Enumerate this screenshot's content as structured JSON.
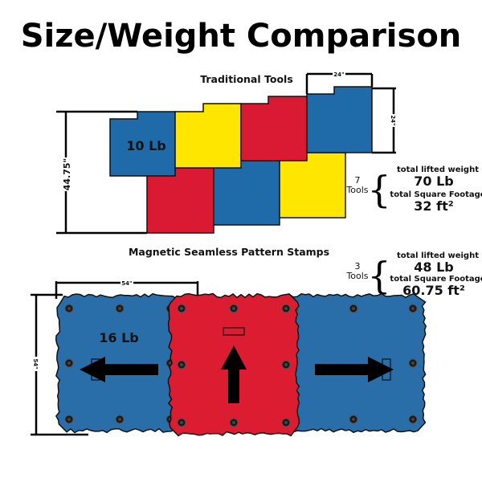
{
  "title": "Size/Weight Comparison",
  "colors": {
    "blue": "#1f6aa8",
    "yellow": "#ffe600",
    "red": "#d91a32",
    "stamp_blue": "#2a6ea9",
    "stamp_red": "#dc1c30"
  },
  "traditional": {
    "heading": "Traditional Tools",
    "tile_weight": "10 Lb",
    "height_dim": "44.75\"",
    "tile_width_dim": "24\"",
    "tile_height_dim": "24\"",
    "tool_count": "7",
    "tools_label": "Tools",
    "weight_label": "total lifted weight",
    "weight_value": "70 Lb",
    "area_label": "total Square Footage",
    "area_value": "32 ft²"
  },
  "magnetic": {
    "heading": "Magnetic Seamless Pattern Stamps",
    "stamp_weight": "16 Lb",
    "width_dim": "54\"",
    "height_dim": "54\"",
    "tool_count": "3",
    "tools_label": "Tools",
    "weight_label": "total lifted weight",
    "weight_value": "48 Lb",
    "area_label": "total Square Footage",
    "area_value": "60.75 ft²"
  }
}
